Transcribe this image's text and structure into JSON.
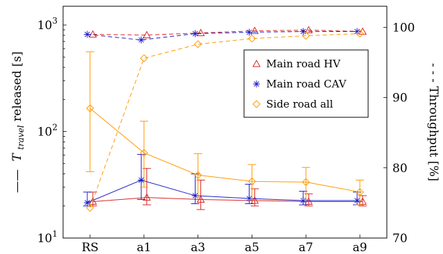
{
  "chart_data": {
    "type": "line",
    "categories": [
      "RS",
      "a1",
      "a3",
      "a5",
      "a7",
      "a9"
    ],
    "left_axis": {
      "scale": "log",
      "range": [
        10,
        1500
      ],
      "ticks": [
        {
          "value": 10,
          "base": "10",
          "exp": "1"
        },
        {
          "value": 100,
          "base": "10",
          "exp": "2"
        },
        {
          "value": 1000,
          "base": "10",
          "exp": "3"
        }
      ],
      "label_prefix": "——",
      "label_symbol": "T",
      "label_subscript": "travel",
      "label_suffix": " released [s]"
    },
    "right_axis": {
      "scale": "linear",
      "range": [
        70,
        103
      ],
      "ticks": [
        "70",
        "80",
        "90",
        "100"
      ],
      "label": "- - -  Throughput [%]"
    },
    "series": [
      {
        "name": "Main road HV",
        "color": "#d62728",
        "marker": "triangle",
        "travel_time": [
          22,
          24,
          23,
          22.5,
          22,
          22
        ],
        "error_low": [
          20,
          20.5,
          18.5,
          20,
          20,
          20
        ],
        "error_high": [
          27,
          45,
          35,
          29,
          26,
          25
        ],
        "throughput": [
          99,
          98.9,
          99.2,
          99.5,
          99.6,
          99.4
        ]
      },
      {
        "name": "Main road CAV",
        "color": "#1f1fc8",
        "marker": "star",
        "travel_time": [
          21.5,
          35,
          25,
          23.5,
          22.5,
          22.5
        ],
        "error_low": [
          20,
          23,
          21,
          21,
          20.5,
          20.5
        ],
        "error_high": [
          27,
          61,
          40,
          32,
          27.5,
          27
        ],
        "throughput": [
          99,
          98.2,
          99.1,
          99.3,
          99.4,
          99.4
        ]
      },
      {
        "name": "Side road all",
        "color": "#ff9900",
        "marker": "diamond",
        "travel_time": [
          165,
          63,
          39,
          34,
          33.5,
          27
        ],
        "error_low": [
          42,
          30,
          24,
          23,
          23,
          20.5
        ],
        "error_high": [
          560,
          125,
          62,
          49,
          46,
          35
        ],
        "throughput": [
          74.3,
          95.6,
          97.6,
          98.4,
          98.8,
          99.1
        ]
      }
    ],
    "legend_position": "upper-right",
    "grid": false
  }
}
